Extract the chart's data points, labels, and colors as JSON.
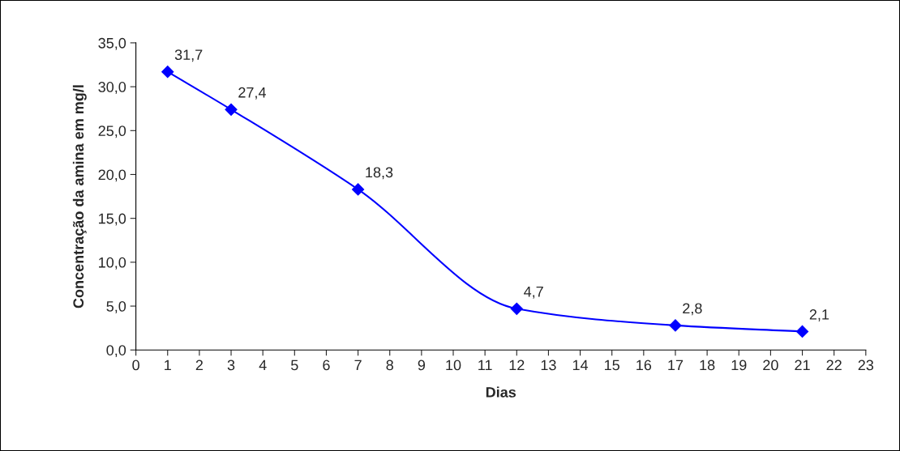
{
  "chart_data": {
    "type": "line",
    "xlabel": "Dias",
    "ylabel": "Concentração da amina em mg/l",
    "x": [
      1,
      3,
      7,
      12,
      17,
      21
    ],
    "series": [
      {
        "color": "#0000ff",
        "values": [
          31.7,
          27.4,
          18.3,
          4.7,
          2.8,
          2.1
        ],
        "value_labels": [
          "31,7",
          "27,4",
          "18,3",
          "4,7",
          "2,8",
          "2,1"
        ]
      }
    ],
    "xlim": [
      0,
      23
    ],
    "xticks": [
      0,
      1,
      2,
      3,
      4,
      5,
      6,
      7,
      8,
      9,
      10,
      11,
      12,
      13,
      14,
      15,
      16,
      17,
      18,
      19,
      20,
      21,
      22,
      23
    ],
    "ylim": [
      0,
      35
    ],
    "yticks": [
      {
        "value": 0,
        "label": "0,0"
      },
      {
        "value": 5,
        "label": "5,0"
      },
      {
        "value": 10,
        "label": "10,0"
      },
      {
        "value": 15,
        "label": "15,0"
      },
      {
        "value": 20,
        "label": "20,0"
      },
      {
        "value": 25,
        "label": "25,0"
      },
      {
        "value": 30,
        "label": "30,0"
      },
      {
        "value": 35,
        "label": "35,0"
      }
    ],
    "marker": "diamond",
    "line_style": "solid",
    "grid": false,
    "legend": false
  }
}
